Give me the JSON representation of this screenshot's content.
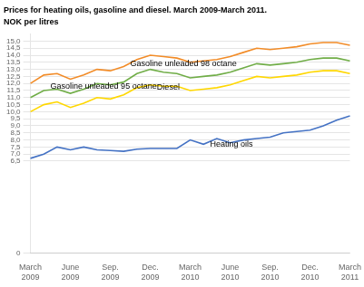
{
  "chart_data": {
    "type": "line",
    "title": "Prices for heating oils, gasoline and diesel. March 2009-March 2011.",
    "subtitle": "NOK per litres",
    "categories": [
      "March\n2009",
      null,
      null,
      "June\n2009",
      null,
      null,
      "Sep.\n2009",
      null,
      null,
      "Dec.\n2009",
      null,
      null,
      "March\n2010",
      null,
      null,
      "June\n2010",
      null,
      null,
      "Sep.\n2010",
      null,
      null,
      "Dec.\n2010",
      null,
      null,
      "March\n2011"
    ],
    "series": [
      {
        "name": "Gasoline unleaded 98 octane",
        "color": "#f28c28",
        "values": [
          12.0,
          12.6,
          12.7,
          12.3,
          12.6,
          13.0,
          12.9,
          13.2,
          13.7,
          14.0,
          13.9,
          13.8,
          13.5,
          13.6,
          13.7,
          13.9,
          14.2,
          14.5,
          14.4,
          14.5,
          14.6,
          14.8,
          14.9,
          14.9,
          14.7
        ]
      },
      {
        "name": "Gasoline unleaded 95 octane",
        "color": "#70ad47",
        "values": [
          11.0,
          11.5,
          11.6,
          11.3,
          11.6,
          12.0,
          11.9,
          12.1,
          12.7,
          13.0,
          12.8,
          12.7,
          12.4,
          12.5,
          12.6,
          12.8,
          13.1,
          13.4,
          13.3,
          13.4,
          13.5,
          13.7,
          13.8,
          13.8,
          13.6
        ]
      },
      {
        "name": "Diesel",
        "color": "#ffd700",
        "values": [
          10.0,
          10.5,
          10.7,
          10.3,
          10.6,
          11.0,
          10.9,
          11.2,
          11.7,
          11.9,
          11.8,
          11.8,
          11.5,
          11.6,
          11.7,
          11.9,
          12.2,
          12.5,
          12.4,
          12.5,
          12.6,
          12.8,
          12.9,
          12.9,
          12.7
        ]
      },
      {
        "name": "Heating oils",
        "color": "#4472c4",
        "values": [
          6.7,
          7.0,
          7.5,
          7.3,
          7.5,
          7.3,
          7.25,
          7.2,
          7.35,
          7.4,
          7.4,
          7.4,
          8.0,
          7.7,
          8.1,
          7.8,
          8.0,
          8.1,
          8.2,
          8.5,
          8.6,
          8.7,
          9.0,
          9.4,
          9.7
        ]
      }
    ],
    "ylim": [
      0,
      15.5
    ],
    "yticks": [
      0,
      {
        "value": 6.5,
        "label": "6,5"
      },
      {
        "value": 7.0,
        "label": "7,0"
      },
      {
        "value": 7.5,
        "label": "7,5"
      },
      {
        "value": 8.0,
        "label": "8,0"
      },
      {
        "value": 8.5,
        "label": "8,5"
      },
      {
        "value": 9.0,
        "label": "9,0"
      },
      {
        "value": 9.5,
        "label": "9,5"
      },
      {
        "value": 10.0,
        "label": "10,0"
      },
      {
        "value": 10.5,
        "label": "10,5"
      },
      {
        "value": 11.0,
        "label": "11,0"
      },
      {
        "value": 11.5,
        "label": "11,5"
      },
      {
        "value": 12.0,
        "label": "12,0"
      },
      {
        "value": 12.5,
        "label": "12,5"
      },
      {
        "value": 13.0,
        "label": "13,0"
      },
      {
        "value": 13.5,
        "label": "13,5"
      },
      {
        "value": 14.0,
        "label": "14,0"
      },
      {
        "value": 14.5,
        "label": "14,5"
      },
      {
        "value": 15.0,
        "label": "15,0"
      }
    ],
    "grid": "y",
    "annotations": [
      {
        "text": "Gasoline unleaded 98 octane",
        "x": 7.5,
        "y": 13.2
      },
      {
        "text": "Gasoline unleaded 95 octane",
        "x": 1.5,
        "y": 11.65
      },
      {
        "text": "Diesel",
        "x": 9.5,
        "y": 11.55
      },
      {
        "text": "Heating oils",
        "x": 13.5,
        "y": 7.55
      }
    ]
  }
}
